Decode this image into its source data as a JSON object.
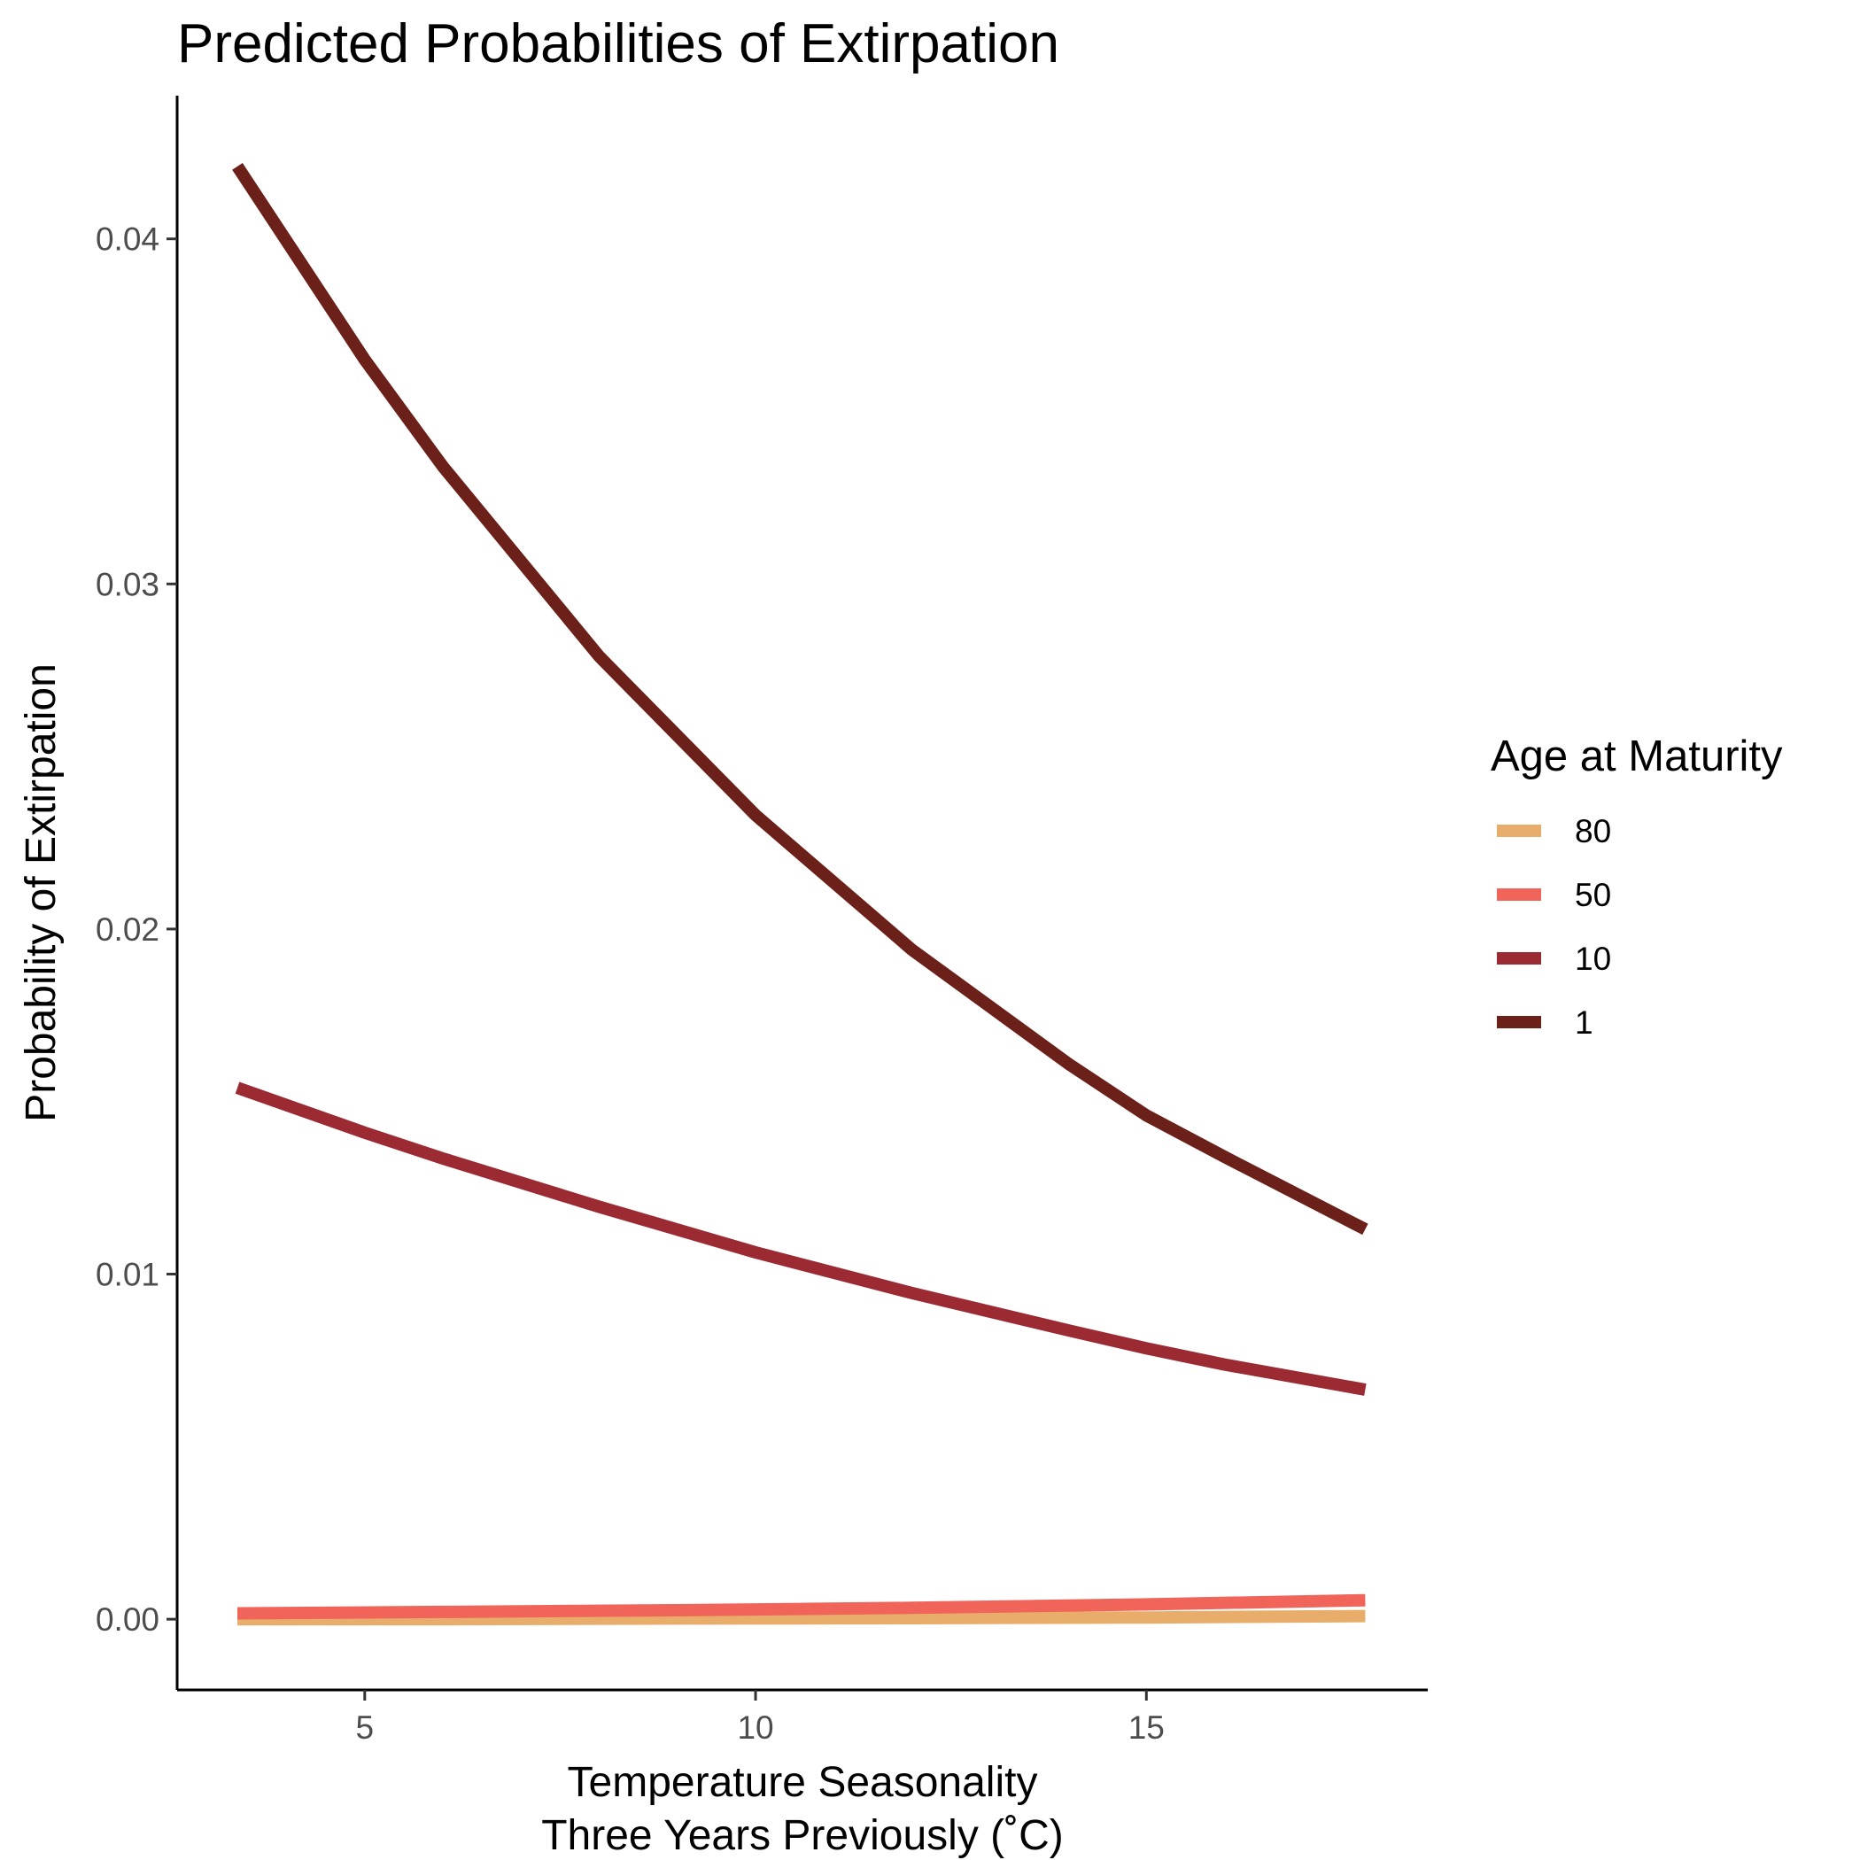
{
  "chart_data": {
    "type": "line",
    "title": "Predicted Probabilities of Extirpation",
    "xlabel": [
      "Temperature Seasonality",
      "Three Years Previously (˚C)"
    ],
    "ylabel": "Probability of Extirpation",
    "xlim": [
      2.6,
      18.6
    ],
    "ylim": [
      -0.00205,
      0.04415
    ],
    "x_ticks": [
      5,
      10,
      15
    ],
    "x_tick_labels": [
      "5",
      "10",
      "15"
    ],
    "y_ticks": [
      0,
      0.01,
      0.02,
      0.03,
      0.04
    ],
    "y_tick_labels": [
      "0.00",
      "0.01",
      "0.02",
      "0.03",
      "0.04"
    ],
    "grid": false,
    "legend": {
      "title": "Age at Maturity",
      "position": "right"
    },
    "series": [
      {
        "name": "80",
        "color": "#E8AD6A",
        "x": [
          3.37,
          6,
          9,
          12,
          15,
          17.8
        ],
        "y": [
          0.0,
          0.0,
          2e-05,
          3e-05,
          5e-05,
          9e-05
        ]
      },
      {
        "name": "50",
        "color": "#F0645A",
        "x": [
          3.37,
          6,
          9,
          12,
          15,
          17.8
        ],
        "y": [
          0.00017,
          0.00021,
          0.00026,
          0.00033,
          0.00043,
          0.00055
        ]
      },
      {
        "name": "10",
        "color": "#9B2A33",
        "x": [
          3.37,
          5,
          6,
          8,
          10,
          12,
          14,
          15,
          16,
          17.8
        ],
        "y": [
          0.0154,
          0.0141,
          0.01335,
          0.01195,
          0.01063,
          0.00945,
          0.00837,
          0.00785,
          0.00738,
          0.00665
        ]
      },
      {
        "name": "1",
        "color": "#6B2019",
        "x": [
          3.37,
          5,
          6,
          8,
          10,
          12,
          14,
          15,
          16,
          17.8
        ],
        "y": [
          0.0421,
          0.0365,
          0.0334,
          0.0279,
          0.0233,
          0.0194,
          0.0161,
          0.0146,
          0.0134,
          0.0113
        ]
      }
    ]
  }
}
